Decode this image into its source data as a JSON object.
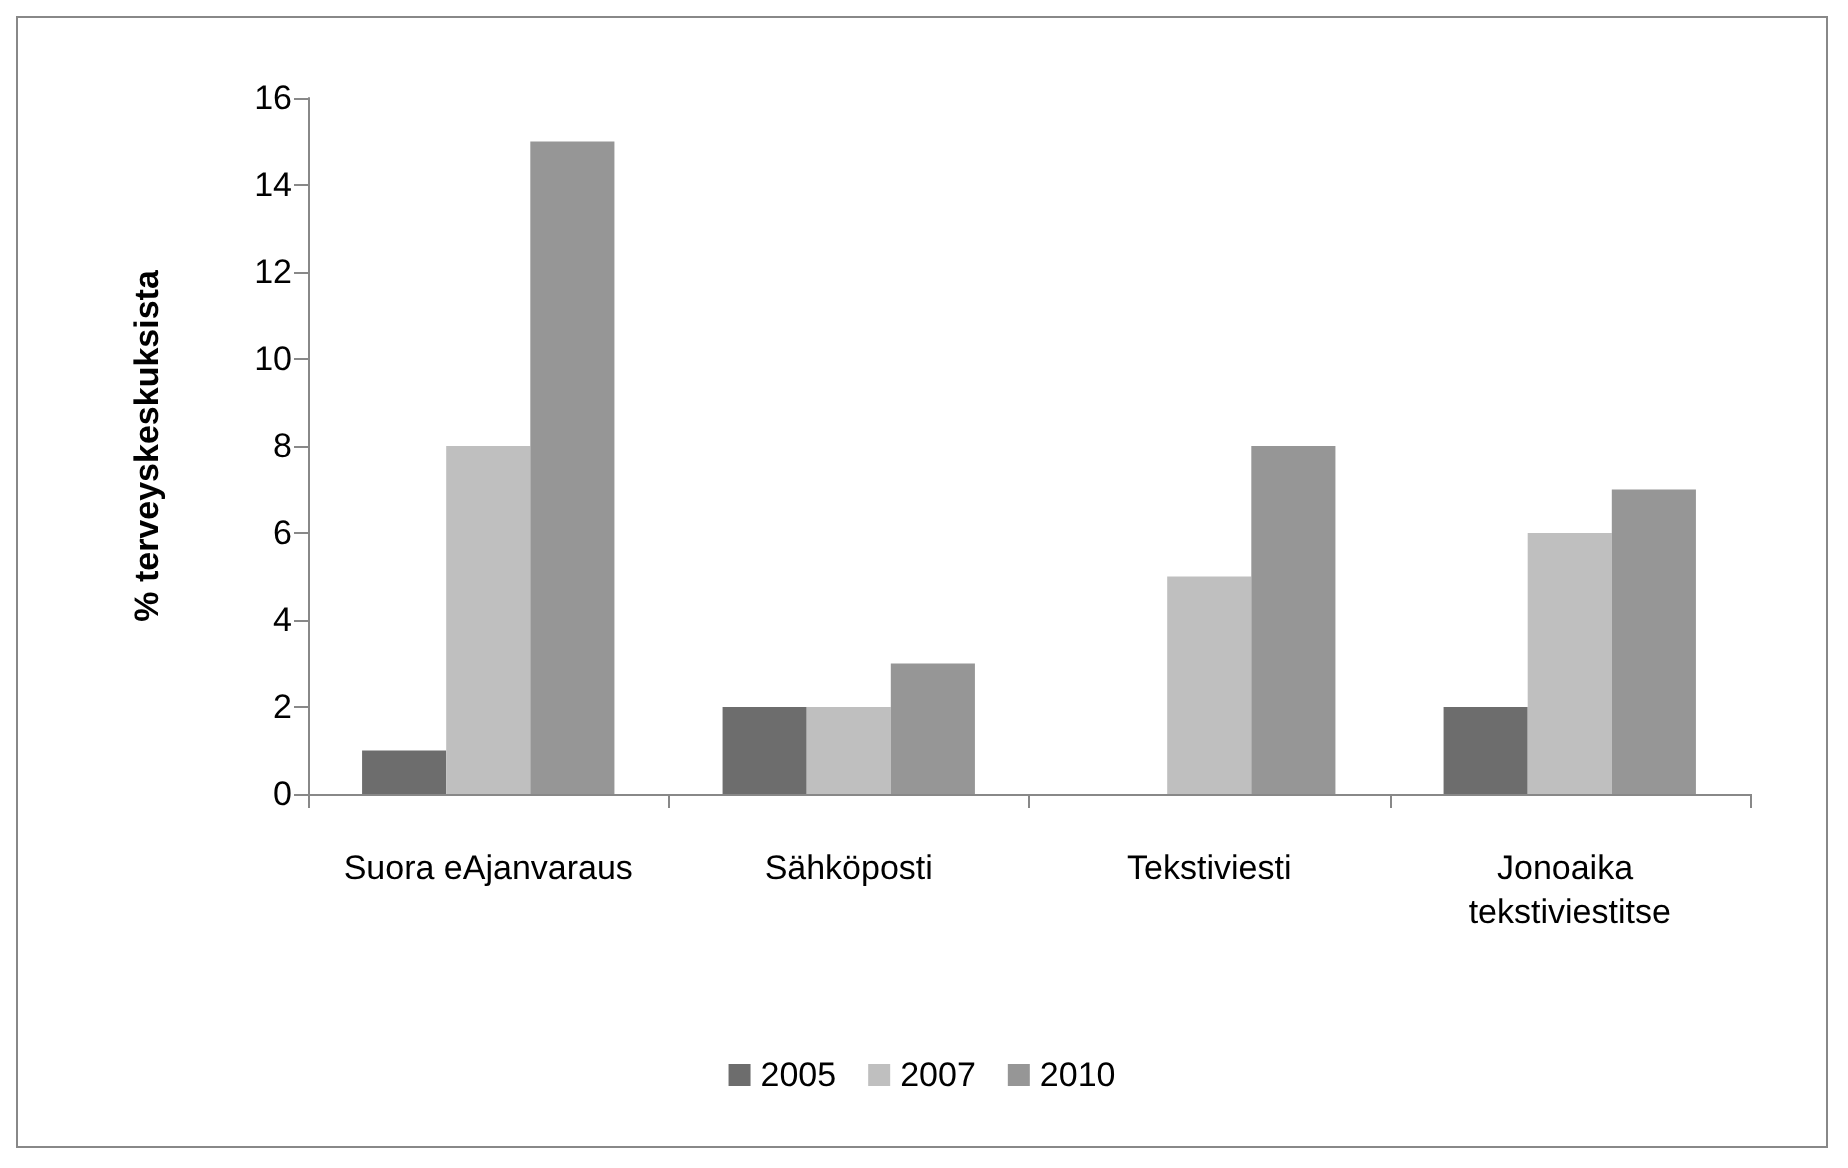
{
  "chart_data": {
    "type": "bar",
    "ylabel": "% terveyskeskuksista",
    "categories": [
      "Suora eAjanvaraus",
      "Sähköposti",
      "Tekstiviesti",
      "Jonoaika tekstiviestitse"
    ],
    "series": [
      {
        "name": "2005",
        "color": "#6d6d6d",
        "values": [
          1,
          2,
          0,
          2
        ]
      },
      {
        "name": "2007",
        "color": "#bfbfbf",
        "values": [
          8,
          2,
          5,
          6
        ]
      },
      {
        "name": "2010",
        "color": "#969696",
        "values": [
          15,
          3,
          8,
          7
        ]
      }
    ],
    "ylim": [
      0,
      16
    ],
    "yticks": [
      0,
      2,
      4,
      6,
      8,
      10,
      12,
      14,
      16
    ],
    "grid": false,
    "legend": "bottom"
  }
}
